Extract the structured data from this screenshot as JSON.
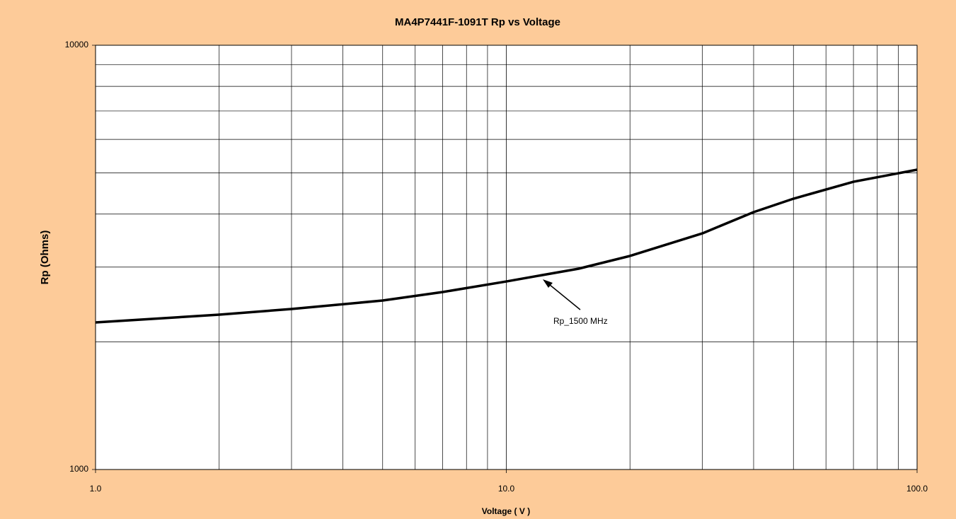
{
  "chart_data": {
    "type": "line",
    "title": "MA4P7441F-1091T Rp vs Voltage",
    "xlabel": "Voltage ( V )",
    "ylabel": "Rp (Ohms)",
    "xscale": "log",
    "yscale": "log",
    "grid": true,
    "xlim": [
      1,
      100
    ],
    "ylim": [
      1000,
      10000
    ],
    "xticks": [
      {
        "value": 1,
        "label": "1.0"
      },
      {
        "value": 10,
        "label": "10.0"
      },
      {
        "value": 100,
        "label": "100.0"
      }
    ],
    "yticks": [
      1000,
      10000
    ],
    "x": [
      1,
      2,
      3,
      5,
      7,
      10,
      15,
      20,
      30,
      40,
      50,
      70,
      100
    ],
    "series": [
      {
        "name": "Rp_1500 MHz",
        "color": "#000000",
        "values": [
          2222,
          2317,
          2390,
          2502,
          2620,
          2775,
          2974,
          3187,
          3602,
          4043,
          4348,
          4767,
          5090
        ]
      }
    ],
    "annotations": [
      {
        "text": "Rp_1500 MHz"
      }
    ]
  }
}
